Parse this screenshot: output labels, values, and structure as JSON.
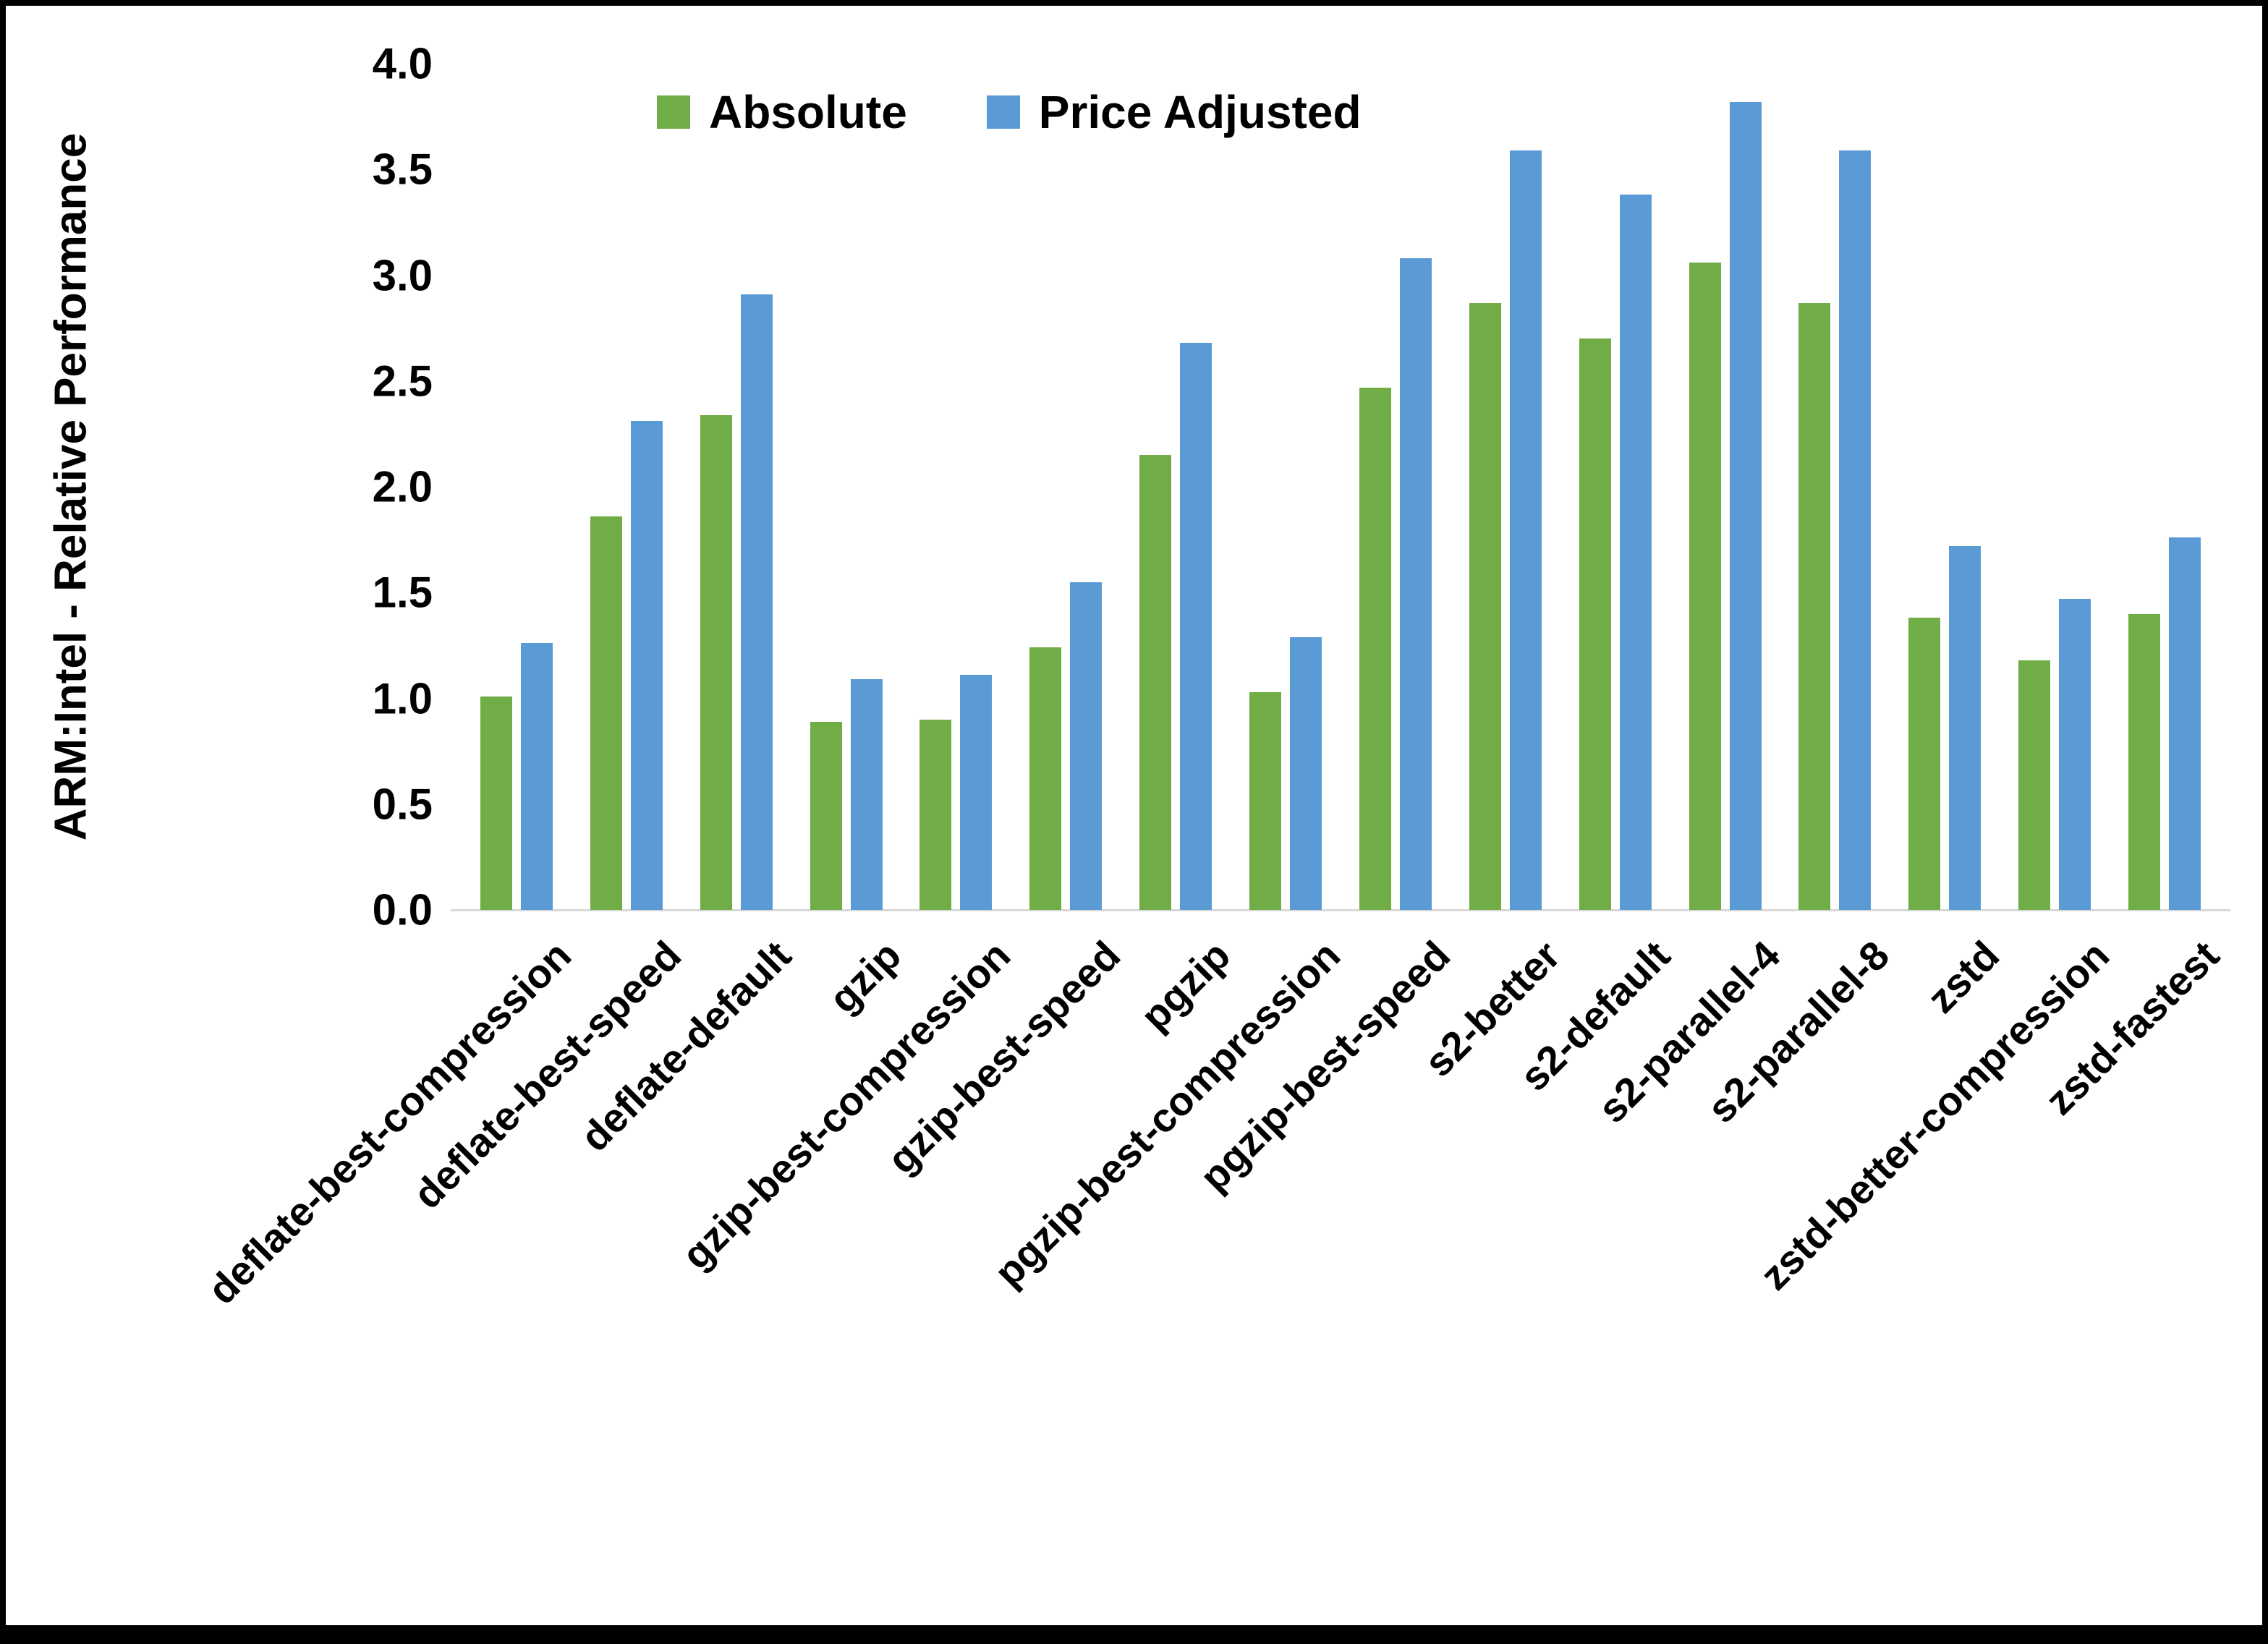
{
  "chart_data": {
    "type": "bar",
    "title": "",
    "xlabel": "",
    "ylabel": "ARM:Intel - Relative Performance",
    "ylim": [
      0,
      4
    ],
    "yticks": [
      0.0,
      0.5,
      1.0,
      1.5,
      2.0,
      2.5,
      3.0,
      3.5,
      4.0
    ],
    "grid": false,
    "legend_position": "top",
    "categories": [
      "deflate-best-compression",
      "deflate-best-speed",
      "deflate-default",
      "gzip",
      "gzip-best-compression",
      "gzip-best-speed",
      "pgzip",
      "pgzip-best-compression",
      "pgzip-best-speed",
      "s2-better",
      "s2-default",
      "s2-parallel-4",
      "s2-parallel-8",
      "zstd",
      "zstd-better-compression",
      "zstd-fastest"
    ],
    "series": [
      {
        "name": "Absolute",
        "color": "#70AD47",
        "values": [
          1.01,
          1.86,
          2.34,
          0.89,
          0.9,
          1.24,
          2.15,
          1.03,
          2.47,
          2.87,
          2.7,
          3.06,
          2.87,
          1.38,
          1.18,
          1.4
        ]
      },
      {
        "name": "Price Adjusted",
        "color": "#5B9BD5",
        "values": [
          1.26,
          2.31,
          2.91,
          1.09,
          1.11,
          1.55,
          2.68,
          1.29,
          3.08,
          3.59,
          3.38,
          3.82,
          3.59,
          1.72,
          1.47,
          1.76
        ]
      }
    ]
  }
}
